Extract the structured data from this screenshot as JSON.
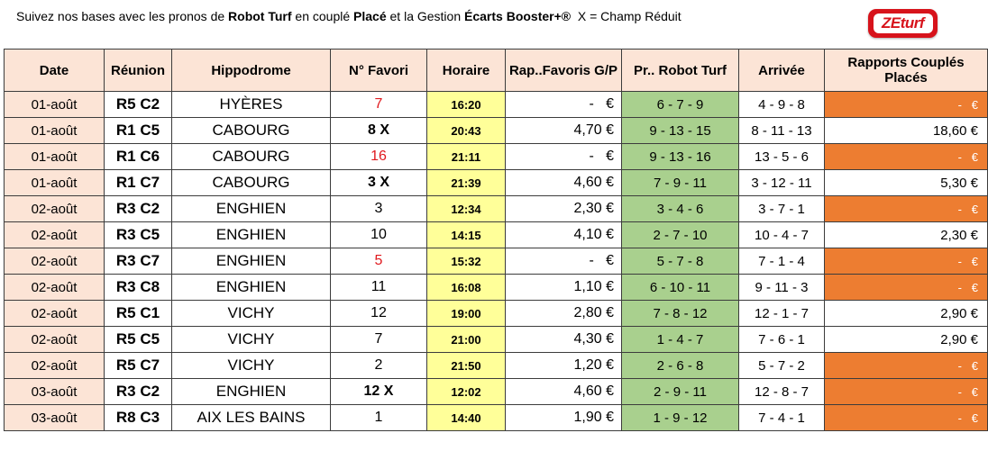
{
  "intro": {
    "t1": "Suivez nos bases avec les pronos de ",
    "b1": "Robot Turf",
    "t2": " en couplé ",
    "b2": "Placé",
    "t3": " et la Gestion ",
    "b3": "Écarts Booster+®",
    "t4": "  X = Champ Réduit"
  },
  "logo": {
    "text": "ZEturf",
    "color": "#d7131b"
  },
  "colors": {
    "header_bg": "#fce4d6",
    "time_bg": "#ffff99",
    "robot_bg": "#a9d08e",
    "empty_bg": "#ed7d31",
    "fav_red": "#e0191e"
  },
  "table": {
    "headers": [
      "Date",
      "Réunion",
      "Hippodrome",
      "N° Favori",
      "Horaire",
      "Rap..Favoris G/P",
      "Pr.. Robot Turf",
      "Arrivée",
      "Rapports Couplés Placés"
    ],
    "rows": [
      {
        "date": "01-août",
        "reunion": "R5 C2",
        "hippo": "HYÈRES",
        "fav": "7",
        "fav_style": "red",
        "time": "16:20",
        "rap": "-   €",
        "robot": "6 - 7 - 9",
        "arrivee": "4 - 9 - 8",
        "cp": "-   €",
        "cp_empty": true
      },
      {
        "date": "01-août",
        "reunion": "R1 C5",
        "hippo": "CABOURG",
        "fav": "8 X",
        "fav_style": "bold",
        "time": "20:43",
        "rap": "4,70 €",
        "robot": "9 - 13 - 15",
        "arrivee": "8 - 11 - 13",
        "cp": "18,60 €",
        "cp_empty": false
      },
      {
        "date": "01-août",
        "reunion": "R1 C6",
        "hippo": "CABOURG",
        "fav": "16",
        "fav_style": "red",
        "time": "21:11",
        "rap": "-   €",
        "robot": "9 - 13 - 16",
        "arrivee": "13 - 5 - 6",
        "cp": "-   €",
        "cp_empty": true
      },
      {
        "date": "01-août",
        "reunion": "R1 C7",
        "hippo": "CABOURG",
        "fav": "3 X",
        "fav_style": "bold",
        "time": "21:39",
        "rap": "4,60 €",
        "robot": "7 - 9 - 11",
        "arrivee": "3 - 12 - 11",
        "cp": "5,30 €",
        "cp_empty": false
      },
      {
        "date": "02-août",
        "reunion": "R3 C2",
        "hippo": "ENGHIEN",
        "fav": "3",
        "fav_style": "normal",
        "time": "12:34",
        "rap": "2,30 €",
        "robot": "3 - 4 - 6",
        "arrivee": "3 - 7 - 1",
        "cp": "-   €",
        "cp_empty": true
      },
      {
        "date": "02-août",
        "reunion": "R3 C5",
        "hippo": "ENGHIEN",
        "fav": "10",
        "fav_style": "normal",
        "time": "14:15",
        "rap": "4,10 €",
        "robot": "2 - 7 - 10",
        "arrivee": "10 - 4 - 7",
        "cp": "2,30 €",
        "cp_empty": false
      },
      {
        "date": "02-août",
        "reunion": "R3 C7",
        "hippo": "ENGHIEN",
        "fav": "5",
        "fav_style": "red",
        "time": "15:32",
        "rap": "-   €",
        "robot": "5 - 7 - 8",
        "arrivee": "7 - 1 - 4",
        "cp": "-   €",
        "cp_empty": true
      },
      {
        "date": "02-août",
        "reunion": "R3 C8",
        "hippo": "ENGHIEN",
        "fav": "11",
        "fav_style": "normal",
        "time": "16:08",
        "rap": "1,10 €",
        "robot": "6 - 10 - 11",
        "arrivee": "9 - 11 - 3",
        "cp": "-   €",
        "cp_empty": true
      },
      {
        "date": "02-août",
        "reunion": "R5 C1",
        "hippo": "VICHY",
        "fav": "12",
        "fav_style": "normal",
        "time": "19:00",
        "rap": "2,80 €",
        "robot": "7 - 8 - 12",
        "arrivee": "12 - 1 - 7",
        "cp": "2,90 €",
        "cp_empty": false
      },
      {
        "date": "02-août",
        "reunion": "R5 C5",
        "hippo": "VICHY",
        "fav": "7",
        "fav_style": "normal",
        "time": "21:00",
        "rap": "4,30 €",
        "robot": "1 - 4 - 7",
        "arrivee": "7 - 6 - 1",
        "cp": "2,90 €",
        "cp_empty": false
      },
      {
        "date": "02-août",
        "reunion": "R5 C7",
        "hippo": "VICHY",
        "fav": "2",
        "fav_style": "normal",
        "time": "21:50",
        "rap": "1,20 €",
        "robot": "2 - 6 - 8",
        "arrivee": "5 - 7 - 2",
        "cp": "-   €",
        "cp_empty": true
      },
      {
        "date": "03-août",
        "reunion": "R3 C2",
        "hippo": "ENGHIEN",
        "fav": "12 X",
        "fav_style": "bold",
        "time": "12:02",
        "rap": "4,60 €",
        "robot": "2 - 9 - 11",
        "arrivee": "12 - 8 - 7",
        "cp": "-   €",
        "cp_empty": true
      },
      {
        "date": "03-août",
        "reunion": "R8 C3",
        "hippo": "AIX LES BAINS",
        "fav": "1",
        "fav_style": "normal",
        "time": "14:40",
        "rap": "1,90 €",
        "robot": "1 - 9 - 12",
        "arrivee": "7 - 4 - 1",
        "cp": "-   €",
        "cp_empty": true
      }
    ]
  }
}
